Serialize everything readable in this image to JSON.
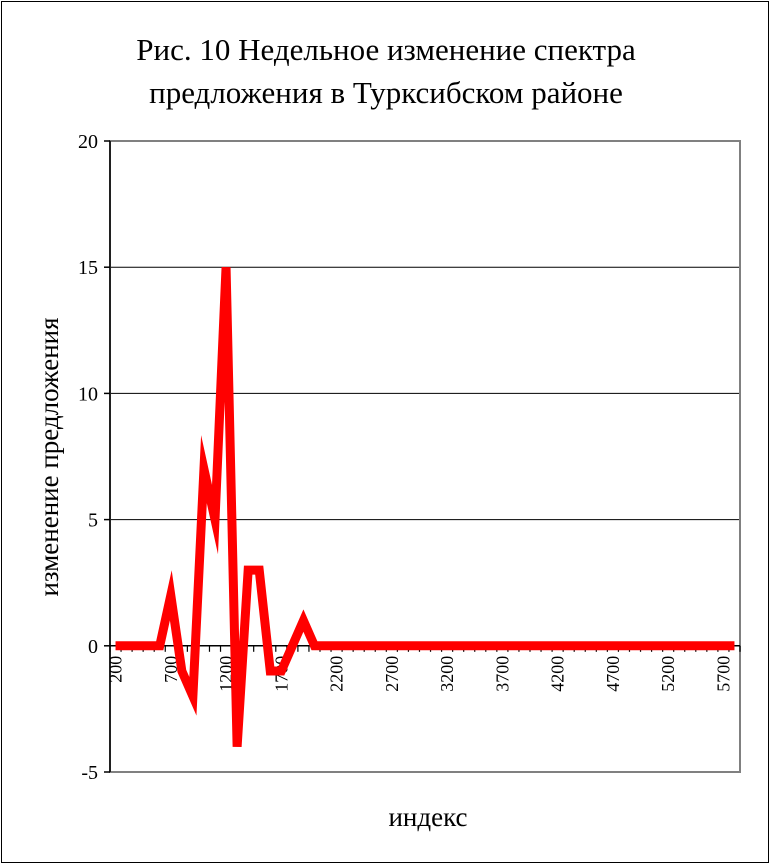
{
  "chart_data": {
    "type": "line",
    "title_lines": [
      "Рис. 10 Недельное изменение спектра",
      "предложения в Турксибском районе"
    ],
    "xlabel": "индекс",
    "ylabel": "изменение предложения",
    "ylim": [
      -5,
      20
    ],
    "yticks": [
      "-5",
      "0",
      "5",
      "10",
      "15",
      "20"
    ],
    "xticks": [
      "200",
      "700",
      "1200",
      "1700",
      "2200",
      "2700",
      "3200",
      "3700",
      "4200",
      "4700",
      "5200",
      "5700"
    ],
    "grid": "horizontal",
    "legend": "none",
    "series": [
      {
        "color": "#ff0000",
        "x": [
          200,
          300,
          400,
          500,
          600,
          700,
          800,
          900,
          1000,
          1100,
          1200,
          1300,
          1400,
          1500,
          1600,
          1700,
          1800,
          1900,
          2000,
          2100,
          2200,
          2300,
          2400,
          2500,
          2600,
          2700,
          2800,
          2900,
          3000,
          3100,
          3200,
          3300,
          3400,
          3500,
          3600,
          3700,
          3800,
          3900,
          4000,
          4100,
          4200,
          4300,
          4400,
          4500,
          4600,
          4700,
          4800,
          4900,
          5000,
          5100,
          5200,
          5300,
          5400,
          5500,
          5600,
          5700,
          5800
        ],
        "y": [
          0,
          0,
          0,
          0,
          0,
          2,
          -1,
          -2,
          7,
          5,
          15,
          -4,
          3,
          3,
          -1,
          -1,
          0,
          1,
          0,
          0,
          0,
          0,
          0,
          0,
          0,
          0,
          0,
          0,
          0,
          0,
          0,
          0,
          0,
          0,
          0,
          0,
          0,
          0,
          0,
          0,
          0,
          0,
          0,
          0,
          0,
          0,
          0,
          0,
          0,
          0,
          0,
          0,
          0,
          0,
          0,
          0,
          0
        ]
      }
    ]
  }
}
